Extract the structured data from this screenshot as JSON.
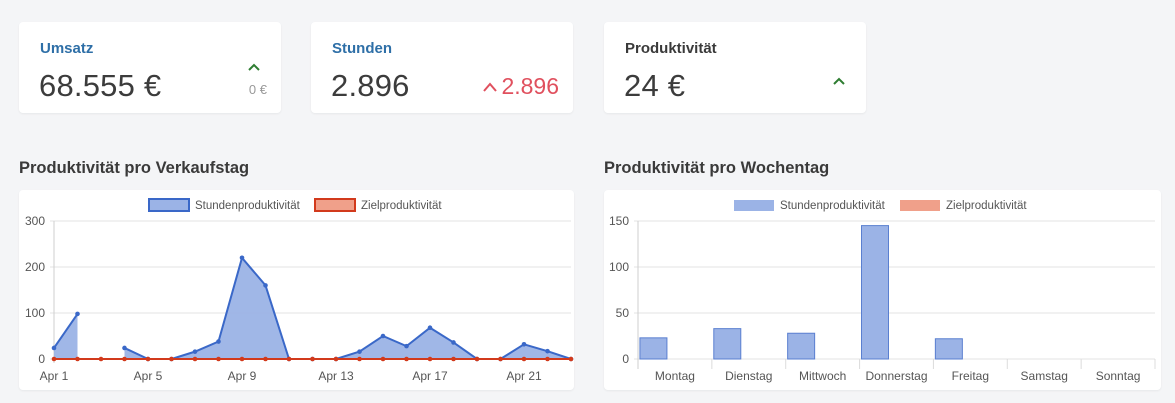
{
  "kpis": {
    "umsatz": {
      "label": "Umsatz",
      "value": "68.555 €",
      "sub": "0 €",
      "label_color": "#2e6fa7",
      "trend_color": "#2e7d32"
    },
    "stunden": {
      "label": "Stunden",
      "value": "2.896",
      "delta": "2.896",
      "label_color": "#2e6fa7",
      "delta_color": "#e0505e"
    },
    "produktivitaet": {
      "label": "Produktivität",
      "value": "24 €",
      "label_color": "#3a3a3a",
      "trend_color": "#2e7d32"
    }
  },
  "sections": {
    "verkaufstag_title": "Produktivität pro Verkaufstag",
    "wochentag_title": "Produktivität pro Wochentag"
  },
  "chart_data": [
    {
      "type": "line",
      "title": "Produktivität pro Verkaufstag",
      "legend_position": "top",
      "ylim": [
        0,
        300
      ],
      "y_ticks": [
        "300",
        "200",
        "100",
        "0"
      ],
      "x_tick_labels": [
        "Apr 1",
        "Apr 5",
        "Apr 9",
        "Apr 13",
        "Apr 17",
        "Apr 21"
      ],
      "x": [
        "Apr 1",
        "Apr 2",
        "Apr 3",
        "Apr 4",
        "Apr 5",
        "Apr 6",
        "Apr 7",
        "Apr 8",
        "Apr 9",
        "Apr 10",
        "Apr 11",
        "Apr 12",
        "Apr 13",
        "Apr 14",
        "Apr 15",
        "Apr 16",
        "Apr 17",
        "Apr 18",
        "Apr 19",
        "Apr 20",
        "Apr 21",
        "Apr 22",
        "Apr 23"
      ],
      "series": [
        {
          "name": "Stundenproduktivität",
          "color": "#3a68c8",
          "fill": "#9bb3e6",
          "values": [
            24,
            98,
            null,
            24,
            0,
            0,
            16,
            38,
            220,
            160,
            0,
            0,
            0,
            16,
            50,
            28,
            68,
            36,
            0,
            0,
            32,
            17,
            0
          ]
        },
        {
          "name": "Zielproduktivität",
          "color": "#d23a1c",
          "fill": "#f0a08a",
          "values": [
            0,
            0,
            0,
            0,
            0,
            0,
            0,
            0,
            0,
            0,
            0,
            0,
            0,
            0,
            0,
            0,
            0,
            0,
            0,
            0,
            0,
            0,
            0
          ]
        }
      ]
    },
    {
      "type": "bar",
      "title": "Produktivität pro Wochentag",
      "legend_position": "top",
      "ylim": [
        0,
        150
      ],
      "y_ticks": [
        "150",
        "100",
        "50",
        "0"
      ],
      "categories": [
        "Montag",
        "Dienstag",
        "Mittwoch",
        "Donnerstag",
        "Freitag",
        "Samstag",
        "Sonntag"
      ],
      "series": [
        {
          "name": "Stundenproduktivität",
          "color": "#9bb3e6",
          "border": "#5a7fd0",
          "values": [
            23,
            33,
            28,
            145,
            22,
            0,
            0
          ]
        },
        {
          "name": "Zielproduktivität",
          "color": "#f0a08a",
          "border": "#e08870",
          "values": [
            0,
            0,
            0,
            0,
            0,
            0,
            0
          ]
        }
      ]
    }
  ]
}
